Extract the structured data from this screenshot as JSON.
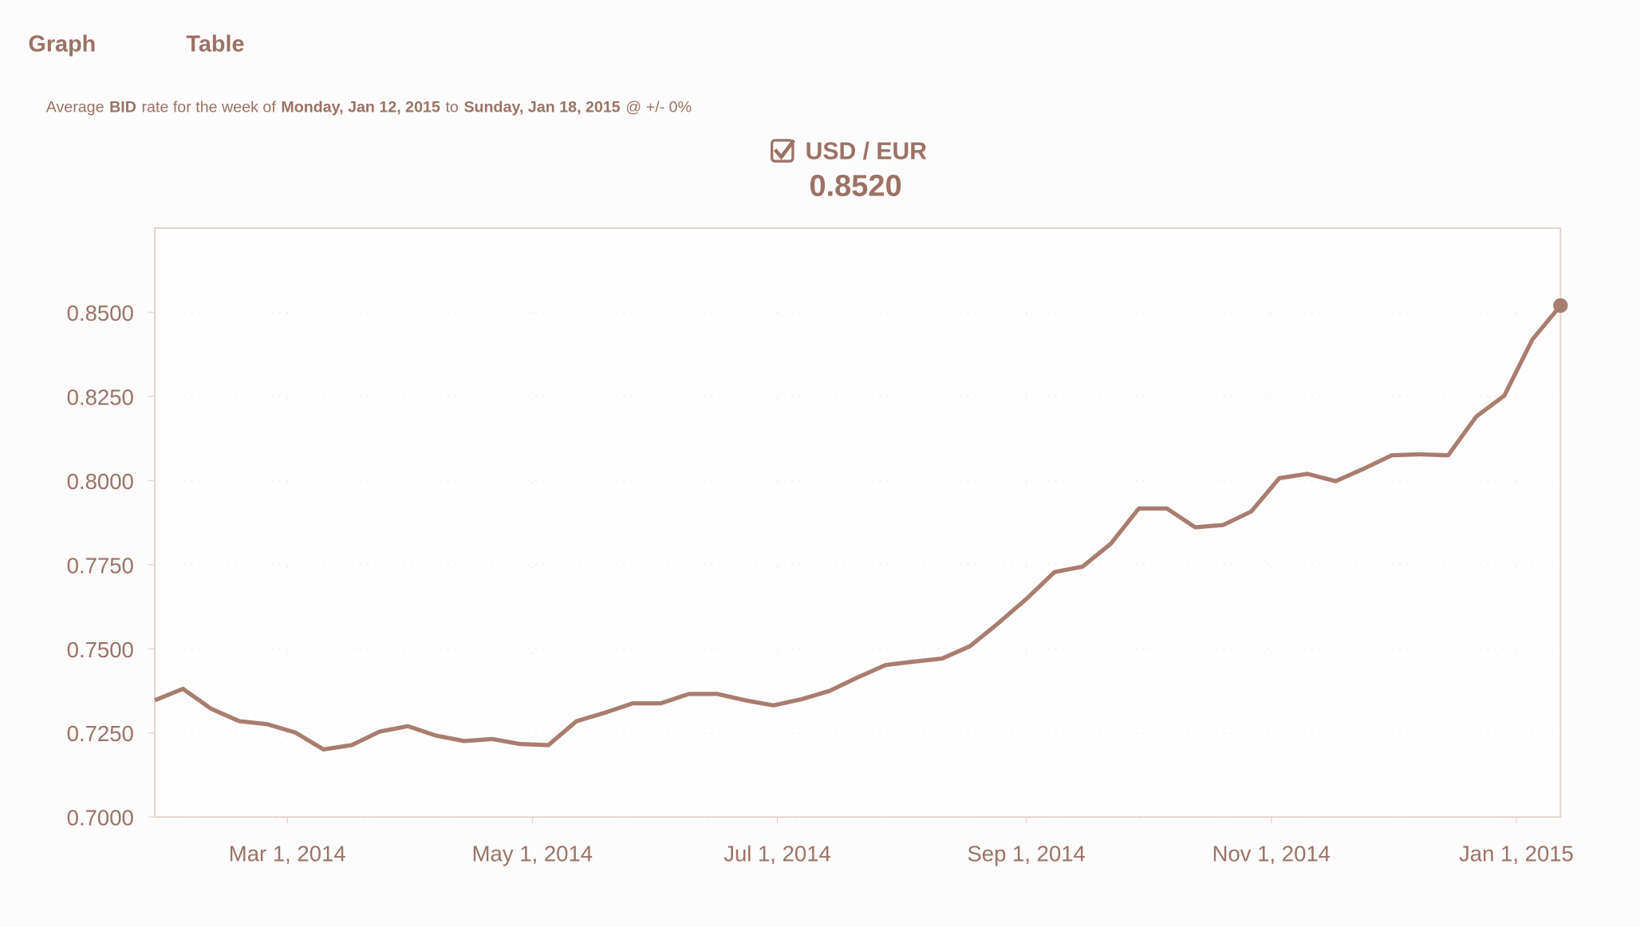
{
  "tabs": [
    "Graph",
    "Table"
  ],
  "subtitle_parts": [
    {
      "text": "Average",
      "bold": false
    },
    {
      "text": "BID",
      "bold": true
    },
    {
      "text": "rate for the week of",
      "bold": false
    },
    {
      "text": "Monday, Jan 12, 2015",
      "bold": true
    },
    {
      "text": "to",
      "bold": false
    },
    {
      "text": "Sunday, Jan 18, 2015",
      "bold": true
    },
    {
      "text": "@ +/- 0%",
      "bold": false
    }
  ],
  "chart_data": {
    "type": "line",
    "headline": "0.8520",
    "x": [
      "2014-01-27",
      "2014-02-03",
      "2014-02-10",
      "2014-02-17",
      "2014-02-24",
      "2014-03-03",
      "2014-03-10",
      "2014-03-17",
      "2014-03-24",
      "2014-03-31",
      "2014-04-07",
      "2014-04-14",
      "2014-04-21",
      "2014-04-28",
      "2014-05-05",
      "2014-05-12",
      "2014-05-19",
      "2014-05-26",
      "2014-06-02",
      "2014-06-09",
      "2014-06-16",
      "2014-06-23",
      "2014-06-30",
      "2014-07-07",
      "2014-07-14",
      "2014-07-21",
      "2014-07-28",
      "2014-08-04",
      "2014-08-11",
      "2014-08-18",
      "2014-08-25",
      "2014-09-01",
      "2014-09-08",
      "2014-09-15",
      "2014-09-22",
      "2014-09-29",
      "2014-10-06",
      "2014-10-13",
      "2014-10-20",
      "2014-10-27",
      "2014-11-03",
      "2014-11-10",
      "2014-11-17",
      "2014-11-24",
      "2014-12-01",
      "2014-12-08",
      "2014-12-15",
      "2014-12-22",
      "2014-12-29",
      "2015-01-05",
      "2015-01-12"
    ],
    "series": [
      {
        "name": "USD / EUR",
        "color": "#a87d70",
        "values": [
          0.7347,
          0.7381,
          0.7322,
          0.7285,
          0.7276,
          0.7251,
          0.7201,
          0.7214,
          0.7254,
          0.727,
          0.7242,
          0.7226,
          0.7232,
          0.7217,
          0.7214,
          0.7285,
          0.731,
          0.7338,
          0.7338,
          0.7366,
          0.7366,
          0.7347,
          0.7332,
          0.735,
          0.7375,
          0.7415,
          0.7452,
          0.7462,
          0.7471,
          0.7508,
          0.7576,
          0.7648,
          0.7728,
          0.7744,
          0.7812,
          0.7917,
          0.7917,
          0.7861,
          0.7868,
          0.7908,
          0.8007,
          0.802,
          0.7998,
          0.8035,
          0.8075,
          0.8078,
          0.8075,
          0.819,
          0.8252,
          0.8419,
          0.852
        ]
      }
    ],
    "xlim": [
      "2014-01-27",
      "2015-01-12"
    ],
    "xticks": [
      {
        "value": "2014-03-01",
        "label": "Mar 1, 2014"
      },
      {
        "value": "2014-05-01",
        "label": "May 1, 2014"
      },
      {
        "value": "2014-07-01",
        "label": "Jul 1, 2014"
      },
      {
        "value": "2014-09-01",
        "label": "Sep 1, 2014"
      },
      {
        "value": "2014-11-01",
        "label": "Nov 1, 2014"
      },
      {
        "value": "2015-01-01",
        "label": "Jan 1, 2015"
      }
    ],
    "ylim": [
      0.7,
      0.875
    ],
    "yticks": [
      {
        "value": 0.7,
        "label": "0.7000"
      },
      {
        "value": 0.725,
        "label": "0.7250"
      },
      {
        "value": 0.75,
        "label": "0.7500"
      },
      {
        "value": 0.775,
        "label": "0.7750"
      },
      {
        "value": 0.8,
        "label": "0.8000"
      },
      {
        "value": 0.825,
        "label": "0.8250"
      },
      {
        "value": 0.85,
        "label": "0.8500"
      }
    ],
    "grid": true
  }
}
